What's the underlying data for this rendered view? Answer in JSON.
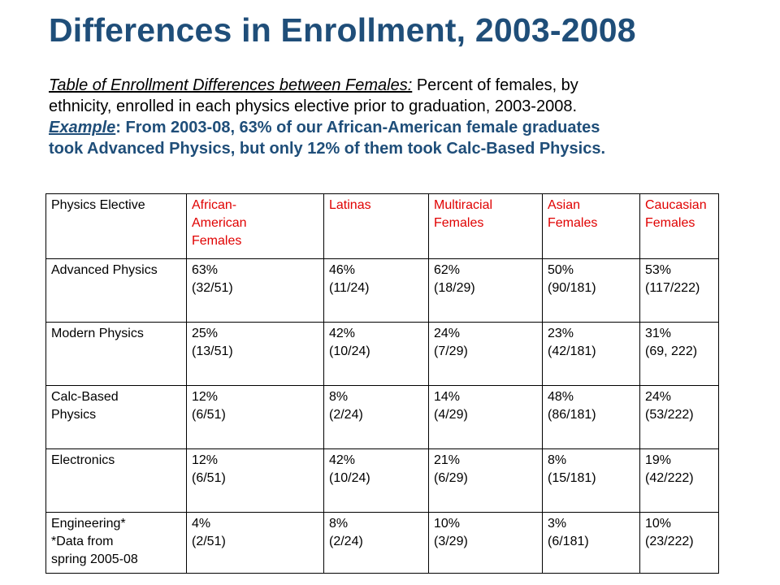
{
  "title": "Differences in Enrollment, 2003-2008",
  "intro": {
    "lead": "Table of Enrollment Differences between Females:",
    "line1_rest": " Percent of females, by",
    "line2": "ethnicity, enrolled in each physics elective prior to graduation, 2003-2008.",
    "example_word": "Example",
    "example_line1_rest": ": From 2003-08, 63% of our African-American female graduates",
    "example_line2": "took Advanced Physics, but only 12% of them took Calc-Based Physics."
  },
  "table": {
    "headers": [
      {
        "lines": [
          "Physics Elective"
        ]
      },
      {
        "lines": [
          "African-",
          "American",
          "Females"
        ]
      },
      {
        "lines": [
          "Latinas"
        ]
      },
      {
        "lines": [
          "Multiracial",
          "Females"
        ]
      },
      {
        "lines": [
          "Asian",
          "Females"
        ]
      },
      {
        "lines": [
          "Caucasian",
          "Females"
        ]
      }
    ],
    "header_color": "#e00000",
    "rows": [
      {
        "elective": [
          "Advanced Physics"
        ],
        "cells": [
          {
            "pct": "63%",
            "frac": "(32/51)"
          },
          {
            "pct": "46%",
            "frac": "(11/24)"
          },
          {
            "pct": "62%",
            "frac": "(18/29)"
          },
          {
            "pct": "50%",
            "frac": "(90/181)"
          },
          {
            "pct": "53%",
            "frac": "(117/222)"
          }
        ]
      },
      {
        "elective": [
          "Modern Physics"
        ],
        "cells": [
          {
            "pct": "25%",
            "frac": "(13/51)"
          },
          {
            "pct": "42%",
            "frac": "(10/24)"
          },
          {
            "pct": "24%",
            "frac": "(7/29)"
          },
          {
            "pct": "23%",
            "frac": "(42/181)"
          },
          {
            "pct": "31%",
            "frac": "(69, 222)"
          }
        ]
      },
      {
        "elective": [
          "Calc-Based",
          "Physics"
        ],
        "cells": [
          {
            "pct": "12%",
            "frac": "(6/51)"
          },
          {
            "pct": "8%",
            "frac": "(2/24)"
          },
          {
            "pct": "14%",
            "frac": "(4/29)"
          },
          {
            "pct": "48%",
            "frac": "(86/181)"
          },
          {
            "pct": "24%",
            "frac": "(53/222)"
          }
        ]
      },
      {
        "elective": [
          "Electronics"
        ],
        "cells": [
          {
            "pct": "12%",
            "frac": "(6/51)"
          },
          {
            "pct": "42%",
            "frac": "(10/24)"
          },
          {
            "pct": "21%",
            "frac": "(6/29)"
          },
          {
            "pct": "8%",
            "frac": "(15/181)"
          },
          {
            "pct": "19%",
            "frac": "(42/222)"
          }
        ]
      },
      {
        "elective": [
          "Engineering*",
          "*Data from",
          "spring 2005-08"
        ],
        "cells": [
          {
            "pct": "4%",
            "frac": "(2/51)"
          },
          {
            "pct": "8%",
            "frac": "(2/24)"
          },
          {
            "pct": "10%",
            "frac": "(3/29)"
          },
          {
            "pct": "3%",
            "frac": "(6/181)"
          },
          {
            "pct": "10%",
            "frac": "(23/222)"
          }
        ]
      }
    ]
  }
}
